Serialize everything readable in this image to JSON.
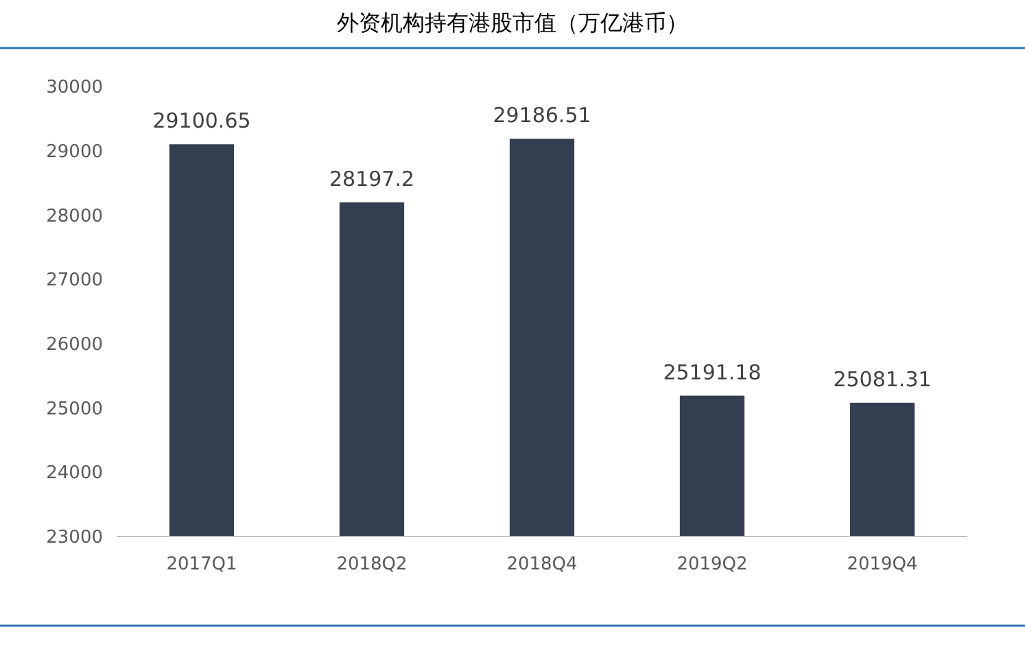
{
  "chart_data": {
    "type": "bar",
    "title": "外资机构持有港股市值（万亿港币）",
    "categories": [
      "2017Q1",
      "2018Q2",
      "2018Q4",
      "2019Q2",
      "2019Q4"
    ],
    "values": [
      29100.65,
      28197.2,
      29186.51,
      25191.18,
      25081.31
    ],
    "color": "#333f50",
    "ylim": [
      23000,
      30000
    ],
    "yticks": [
      23000,
      24000,
      25000,
      26000,
      27000,
      28000,
      29000,
      30000
    ],
    "data_labels": true
  }
}
